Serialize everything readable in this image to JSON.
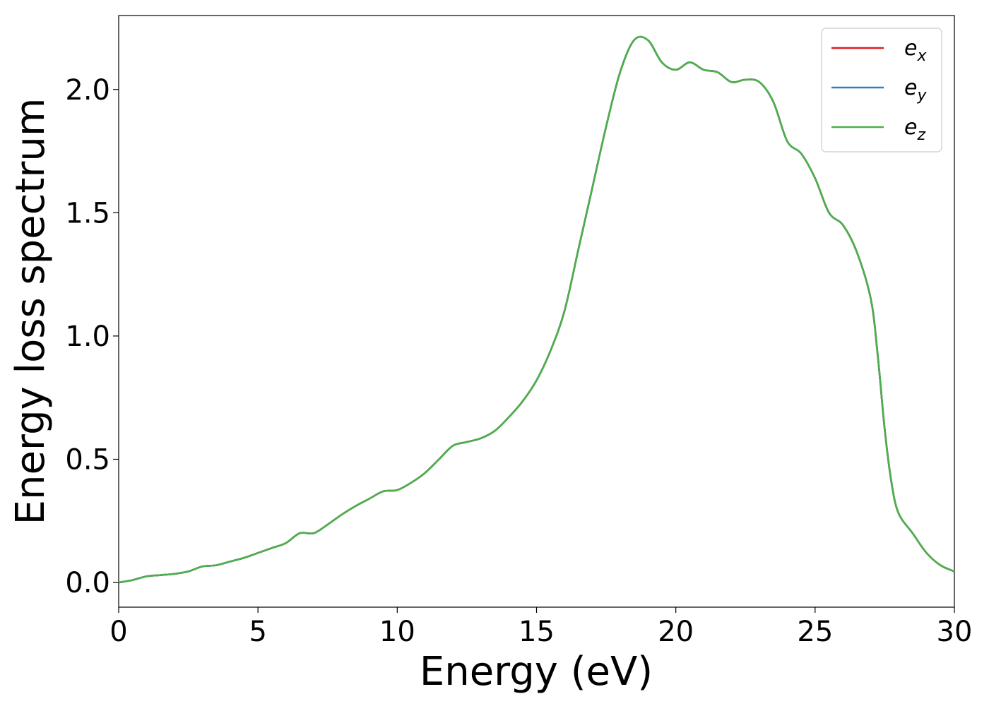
{
  "chart_data": {
    "type": "line",
    "xlabel": "Energy (eV)",
    "ylabel": "Energy loss spectrum",
    "xlim": [
      0,
      30
    ],
    "ylim": [
      -0.1,
      2.3
    ],
    "xticks": [
      "0",
      "5",
      "10",
      "15",
      "20",
      "25",
      "30"
    ],
    "xtick_values": [
      0,
      5,
      10,
      15,
      20,
      25,
      30
    ],
    "yticks": [
      "0.0",
      "0.5",
      "1.0",
      "1.5",
      "2.0"
    ],
    "ytick_values": [
      0.0,
      0.5,
      1.0,
      1.5,
      2.0
    ],
    "grid": false,
    "legend_position": "top-right",
    "x": [
      0,
      0.5,
      1,
      1.5,
      2,
      2.5,
      3,
      3.5,
      4,
      4.5,
      5,
      5.5,
      6,
      6.5,
      7,
      7.5,
      8,
      8.5,
      9,
      9.5,
      10,
      10.5,
      11,
      11.5,
      12,
      12.5,
      13,
      13.5,
      14,
      14.5,
      15,
      15.5,
      16,
      16.5,
      17,
      17.5,
      18,
      18.5,
      19,
      19.5,
      20,
      20.5,
      21,
      21.5,
      22,
      22.5,
      23,
      23.5,
      24,
      24.5,
      25,
      25.5,
      26,
      26.5,
      27,
      27.25,
      27.5,
      27.75,
      28,
      28.5,
      29,
      29.5,
      30
    ],
    "series": [
      {
        "name": "e",
        "sub": "x",
        "color": "#e41a1c",
        "values": [
          0.0,
          0.01,
          0.025,
          0.03,
          0.035,
          0.045,
          0.065,
          0.07,
          0.085,
          0.1,
          0.12,
          0.14,
          0.16,
          0.2,
          0.2,
          0.235,
          0.275,
          0.31,
          0.34,
          0.37,
          0.375,
          0.405,
          0.445,
          0.5,
          0.555,
          0.57,
          0.585,
          0.615,
          0.67,
          0.735,
          0.82,
          0.94,
          1.1,
          1.35,
          1.6,
          1.85,
          2.07,
          2.2,
          2.2,
          2.11,
          2.08,
          2.11,
          2.08,
          2.07,
          2.03,
          2.04,
          2.03,
          1.95,
          1.79,
          1.74,
          1.64,
          1.5,
          1.45,
          1.34,
          1.15,
          0.92,
          0.62,
          0.4,
          0.28,
          0.2,
          0.12,
          0.07,
          0.045
        ]
      },
      {
        "name": "e",
        "sub": "y",
        "color": "#377eb8",
        "values": [
          0.0,
          0.01,
          0.025,
          0.03,
          0.035,
          0.045,
          0.065,
          0.07,
          0.085,
          0.1,
          0.12,
          0.14,
          0.16,
          0.2,
          0.2,
          0.235,
          0.275,
          0.31,
          0.34,
          0.37,
          0.375,
          0.405,
          0.445,
          0.5,
          0.555,
          0.57,
          0.585,
          0.615,
          0.67,
          0.735,
          0.82,
          0.94,
          1.1,
          1.35,
          1.6,
          1.85,
          2.07,
          2.2,
          2.2,
          2.11,
          2.08,
          2.11,
          2.08,
          2.07,
          2.03,
          2.04,
          2.03,
          1.95,
          1.79,
          1.74,
          1.64,
          1.5,
          1.45,
          1.34,
          1.15,
          0.92,
          0.62,
          0.4,
          0.28,
          0.2,
          0.12,
          0.07,
          0.045
        ]
      },
      {
        "name": "e",
        "sub": "z",
        "color": "#4daf4a",
        "values": [
          0.0,
          0.01,
          0.025,
          0.03,
          0.035,
          0.045,
          0.065,
          0.07,
          0.085,
          0.1,
          0.12,
          0.14,
          0.16,
          0.2,
          0.2,
          0.235,
          0.275,
          0.31,
          0.34,
          0.37,
          0.375,
          0.405,
          0.445,
          0.5,
          0.555,
          0.57,
          0.585,
          0.615,
          0.67,
          0.735,
          0.82,
          0.94,
          1.1,
          1.35,
          1.6,
          1.85,
          2.07,
          2.2,
          2.2,
          2.11,
          2.08,
          2.11,
          2.08,
          2.07,
          2.03,
          2.04,
          2.03,
          1.95,
          1.79,
          1.74,
          1.64,
          1.5,
          1.45,
          1.34,
          1.15,
          0.92,
          0.62,
          0.4,
          0.28,
          0.2,
          0.12,
          0.07,
          0.045
        ]
      }
    ]
  }
}
